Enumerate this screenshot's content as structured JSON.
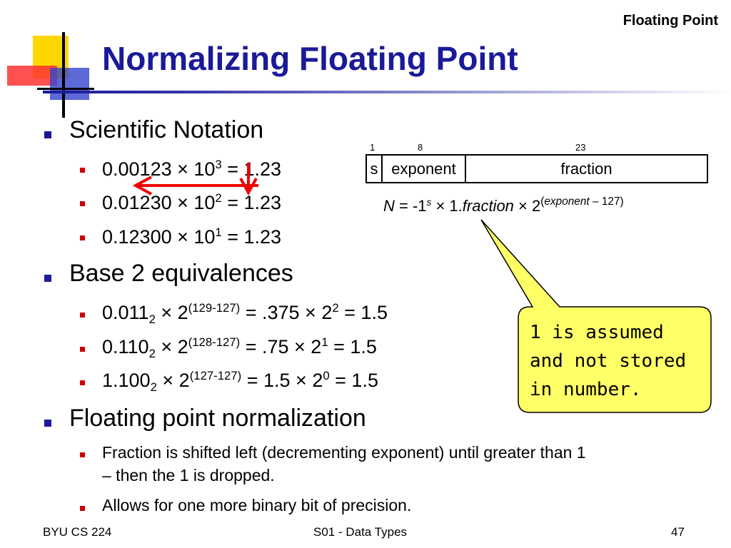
{
  "header": {
    "corner_title": "Floating Point",
    "title": "Normalizing Floating Point"
  },
  "bullets": {
    "sci": {
      "label": "Scientific Notation",
      "items": [
        {
          "a": "0.00123 × 10",
          "e": "3",
          "b": " = 1.23"
        },
        {
          "a": "0.01230 × 10",
          "e": "2",
          "b": " = 1.23"
        },
        {
          "a": "0.12300 × 10",
          "e": "1",
          "b": " = 1.23"
        }
      ]
    },
    "base2": {
      "label": "Base 2 equivalences",
      "items": [
        {
          "a": "0.011",
          "sub": "2",
          "m": " × 2",
          "e1": "(129-127)",
          "n": " = .375 × 2",
          "e2": "2",
          "z": " = 1.5"
        },
        {
          "a": "0.110",
          "sub": "2",
          "m": " × 2",
          "e1": "(128-127)",
          "n": " = .75 × 2",
          "e2": "1",
          "z": " = 1.5"
        },
        {
          "a": "1.100",
          "sub": "2",
          "m": " × 2",
          "e1": "(127-127)",
          "n": " = 1.5 × 2",
          "e2": "0",
          "z": " = 1.5"
        }
      ]
    },
    "norm": {
      "label": "Floating point normalization",
      "items": [
        {
          "line1": "Fraction is shifted left (decrementing exponent) until greater than 1",
          "line2": "– then the 1 is dropped."
        },
        {
          "line1": "Allows for one more binary bit of precision."
        }
      ]
    }
  },
  "format": {
    "bits": {
      "s": "1",
      "exponent": "8",
      "fraction": "23"
    },
    "fields": {
      "s": "s",
      "exponent": "exponent",
      "fraction": "fraction"
    },
    "formula": {
      "n": "N",
      "eq": " = -1",
      "s": "s",
      "times1": " × 1.",
      "frac": "fraction",
      "times2": " × 2",
      "p_open": "(",
      "exp": "exponent",
      "rest": " – 127)"
    }
  },
  "callout": {
    "line1": "1 is assumed",
    "line2": "and not stored",
    "line3": "in number."
  },
  "footer": {
    "left": "BYU CS 224",
    "center": "S01 - Data Types",
    "page": "47"
  },
  "colors": {
    "title": "#1a1a99",
    "bullet_l1": "#1a1a99",
    "bullet_l2": "#cc0000",
    "callout_fill": "#ffff66",
    "arrow": "#ee0000"
  }
}
